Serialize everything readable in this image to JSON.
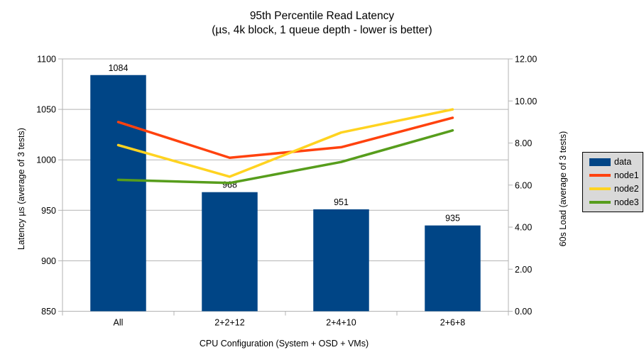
{
  "chart_data": {
    "type": "bar",
    "subtype": "combo-bar-line-dual-axis",
    "title": "95th Percentile Read Latency",
    "subtitle": "(µs, 4k block, 1 queue depth - lower is better)",
    "xlabel": "CPU Configuration (System + OSD + VMs)",
    "categories": [
      "All",
      "2+2+12",
      "2+4+10",
      "2+6+8"
    ],
    "left_axis": {
      "label": "Latency µs (average of 3 tests)",
      "min": 850,
      "max": 1100,
      "step": 50,
      "ticks": [
        850,
        900,
        950,
        1000,
        1050,
        1100
      ]
    },
    "right_axis": {
      "label": "60s Load (average of 3 tests)",
      "min": 0,
      "max": 12,
      "step": 2,
      "ticks": [
        "0.00",
        "2.00",
        "4.00",
        "6.00",
        "8.00",
        "10.00",
        "12.00"
      ]
    },
    "bar_series": {
      "name": "data",
      "axis": "left",
      "color": "#004586",
      "values": [
        1084,
        968,
        951,
        935
      ],
      "data_labels": [
        "1084",
        "968",
        "951",
        "935"
      ]
    },
    "line_series": [
      {
        "name": "node1",
        "axis": "right",
        "color": "#ff420e",
        "values": [
          9.0,
          7.3,
          7.8,
          9.2
        ]
      },
      {
        "name": "node2",
        "axis": "right",
        "color": "#ffd320",
        "values": [
          7.9,
          6.4,
          8.5,
          9.6
        ]
      },
      {
        "name": "node3",
        "axis": "right",
        "color": "#579d1c",
        "values": [
          6.25,
          6.1,
          7.1,
          8.6
        ]
      }
    ],
    "legend": {
      "position": "right",
      "entries": [
        "data",
        "node1",
        "node2",
        "node3"
      ]
    },
    "grid": true,
    "colors": {
      "gridline": "#b3b3b3",
      "axis": "#b3b3b3",
      "text": "#000000",
      "legend_bg": "#d9d9d9"
    }
  }
}
